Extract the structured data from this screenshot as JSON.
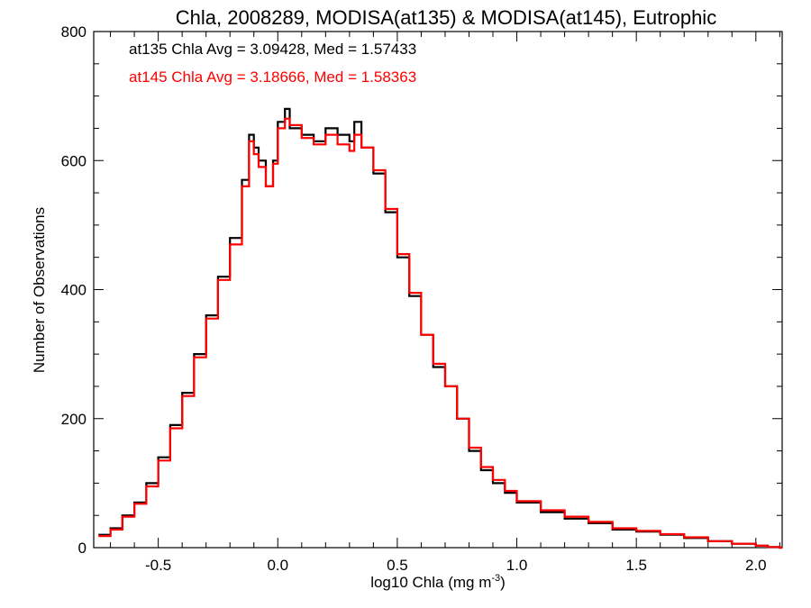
{
  "chart_data": {
    "type": "line",
    "step": true,
    "title": "Chla, 2008289, MODISA(at135) & MODISA(at145), Eutrophic",
    "xlabel": "log10 Chla (mg m",
    "xlabel_sup": "-3",
    "xlabel_close": ")",
    "ylabel": "Number of Observations",
    "xlim": [
      -0.77,
      2.11
    ],
    "ylim": [
      0,
      800
    ],
    "xticks": [
      -0.5,
      0.0,
      0.5,
      1.0,
      1.5,
      2.0
    ],
    "xtick_labels": [
      "-0.5",
      "0.0",
      "0.5",
      "1.0",
      "1.5",
      "2.0"
    ],
    "yticks": [
      0,
      200,
      400,
      600,
      800
    ],
    "ytick_labels": [
      "0",
      "200",
      "400",
      "600",
      "800"
    ],
    "grid": false,
    "annotations": [
      {
        "text": "at135 Chla Avg = 3.09428, Med = 1.57433",
        "color": "#000000"
      },
      {
        "text": "at145 Chla Avg = 3.18666, Med = 1.58363",
        "color": "#ff0000"
      }
    ],
    "series": [
      {
        "label": "at135",
        "color": "#000000",
        "x": [
          -0.75,
          -0.7,
          -0.65,
          -0.6,
          -0.55,
          -0.5,
          -0.45,
          -0.4,
          -0.35,
          -0.3,
          -0.25,
          -0.2,
          -0.15,
          -0.12,
          -0.1,
          -0.08,
          -0.05,
          -0.02,
          0.0,
          0.03,
          0.05,
          0.1,
          0.15,
          0.2,
          0.25,
          0.3,
          0.32,
          0.35,
          0.4,
          0.45,
          0.5,
          0.55,
          0.6,
          0.65,
          0.7,
          0.75,
          0.8,
          0.85,
          0.9,
          0.95,
          1.0,
          1.1,
          1.2,
          1.3,
          1.4,
          1.5,
          1.6,
          1.7,
          1.8,
          1.9,
          2.0,
          2.05,
          2.1
        ],
        "y": [
          20,
          30,
          50,
          70,
          100,
          140,
          190,
          240,
          300,
          360,
          420,
          480,
          570,
          640,
          620,
          600,
          560,
          600,
          660,
          680,
          650,
          640,
          630,
          650,
          640,
          630,
          660,
          620,
          580,
          520,
          450,
          390,
          330,
          280,
          250,
          200,
          150,
          120,
          100,
          85,
          70,
          55,
          45,
          38,
          28,
          25,
          20,
          15,
          10,
          6,
          3,
          1,
          0
        ]
      },
      {
        "label": "at145",
        "color": "#ff0000",
        "x": [
          -0.75,
          -0.7,
          -0.65,
          -0.6,
          -0.55,
          -0.5,
          -0.45,
          -0.4,
          -0.35,
          -0.3,
          -0.25,
          -0.2,
          -0.15,
          -0.12,
          -0.1,
          -0.08,
          -0.05,
          -0.02,
          0.0,
          0.03,
          0.05,
          0.1,
          0.15,
          0.2,
          0.25,
          0.3,
          0.32,
          0.35,
          0.4,
          0.45,
          0.5,
          0.55,
          0.6,
          0.65,
          0.7,
          0.75,
          0.8,
          0.85,
          0.9,
          0.95,
          1.0,
          1.1,
          1.2,
          1.3,
          1.4,
          1.5,
          1.6,
          1.7,
          1.8,
          1.9,
          2.0,
          2.05,
          2.1
        ],
        "y": [
          18,
          28,
          48,
          68,
          95,
          135,
          185,
          235,
          295,
          355,
          415,
          470,
          560,
          630,
          610,
          590,
          560,
          595,
          650,
          665,
          655,
          635,
          625,
          640,
          625,
          615,
          640,
          620,
          585,
          525,
          455,
          395,
          330,
          285,
          250,
          200,
          155,
          125,
          105,
          88,
          72,
          58,
          48,
          40,
          30,
          26,
          21,
          16,
          10,
          6,
          3,
          1,
          0
        ]
      }
    ]
  }
}
